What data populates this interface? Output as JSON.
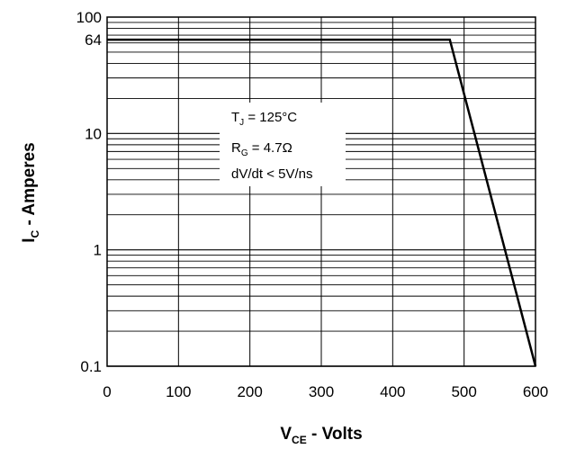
{
  "chart_data": {
    "type": "line",
    "title": "",
    "x_scale": "linear",
    "y_scale": "log",
    "xlim": [
      0,
      600
    ],
    "ylim": [
      0.1,
      100
    ],
    "x_ticks": [
      "0",
      "100",
      "200",
      "300",
      "400",
      "500",
      "600"
    ],
    "y_ticks": [
      {
        "value": 0.1,
        "label": "0.1"
      },
      {
        "value": 1,
        "label": "1"
      },
      {
        "value": 10,
        "label": "10"
      },
      {
        "value": 64,
        "label": "64"
      },
      {
        "value": 100,
        "label": "100"
      }
    ],
    "xlabel": {
      "main": "V",
      "sub": "CE",
      "rest": " - Volts"
    },
    "ylabel": {
      "main": "I",
      "sub": "C",
      "rest": " - Amperes"
    },
    "grid": true,
    "series": [
      {
        "points": [
          {
            "x": 0,
            "y": 64
          },
          {
            "x": 480,
            "y": 64
          },
          {
            "x": 600,
            "y": 0.1
          }
        ]
      }
    ],
    "annotations": [
      {
        "main": "T",
        "sub": "J",
        "rest": " = 125°C"
      },
      {
        "main": "R",
        "sub": "G",
        "rest": " = 4.7Ω"
      },
      {
        "main": "",
        "sub": "",
        "rest": "dV/dt < 5V/ns"
      }
    ]
  }
}
